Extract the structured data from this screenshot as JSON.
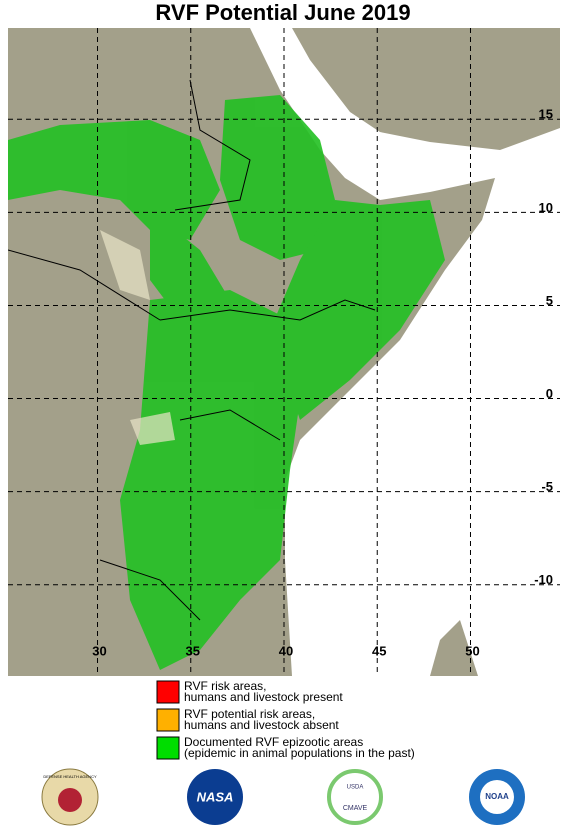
{
  "map": {
    "title": "RVF Potential June 2019",
    "lonlim": [
      25.2,
      54.8
    ],
    "latlim": [
      -14.9,
      19.9
    ],
    "lon_ticks": [
      30,
      35,
      40,
      45,
      50
    ],
    "lat_ticks": [
      15,
      10,
      5,
      0,
      -5,
      -10
    ]
  },
  "legend": [
    {
      "color": "#ff0000",
      "lines": [
        "RVF risk areas,",
        "humans and livestock present"
      ]
    },
    {
      "color": "#ffb000",
      "lines": [
        "RVF potential risk areas,",
        "humans and livestock absent"
      ]
    },
    {
      "color": "#00dd00",
      "lines": [
        "Documented RVF epizootic areas",
        "(epidemic in animal populations in the past)"
      ]
    }
  ],
  "logos": {
    "dha": "DEFENSE HEALTH AGENCY",
    "nasa": "NASA",
    "usda": "USDA",
    "cmave": "CMAVE",
    "noaa": "NOAA"
  }
}
